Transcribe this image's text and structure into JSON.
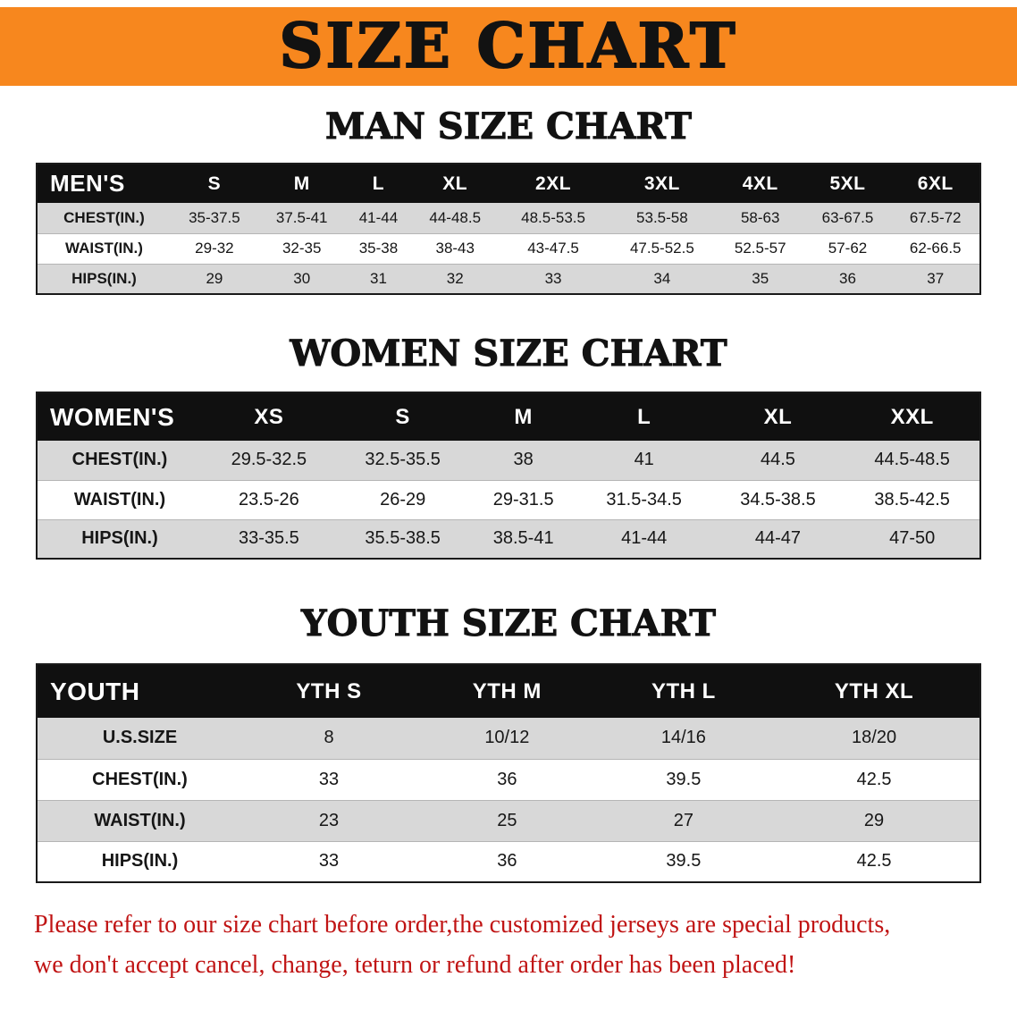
{
  "banner": {
    "title": "SIZE CHART",
    "bg_color": "#F7871E",
    "text_color": "#121212"
  },
  "sections": {
    "men": {
      "heading": "MAN SIZE CHART",
      "table": {
        "header": [
          "MEN'S",
          "S",
          "M",
          "L",
          "XL",
          "2XL",
          "3XL",
          "4XL",
          "5XL",
          "6XL"
        ],
        "rows": [
          [
            "CHEST(IN.)",
            "35-37.5",
            "37.5-41",
            "41-44",
            "44-48.5",
            "48.5-53.5",
            "53.5-58",
            "58-63",
            "63-67.5",
            "67.5-72"
          ],
          [
            "WAIST(IN.)",
            "29-32",
            "32-35",
            "35-38",
            "38-43",
            "43-47.5",
            "47.5-52.5",
            "52.5-57",
            "57-62",
            "62-66.5"
          ],
          [
            "HIPS(IN.)",
            "29",
            "30",
            "31",
            "32",
            "33",
            "34",
            "35",
            "36",
            "37"
          ]
        ]
      }
    },
    "women": {
      "heading": "WOMEN SIZE CHART",
      "table": {
        "header": [
          "WOMEN'S",
          "XS",
          "S",
          "M",
          "L",
          "XL",
          "XXL"
        ],
        "rows": [
          [
            "CHEST(IN.)",
            "29.5-32.5",
            "32.5-35.5",
            "38",
            "41",
            "44.5",
            "44.5-48.5"
          ],
          [
            "WAIST(IN.)",
            "23.5-26",
            "26-29",
            "29-31.5",
            "31.5-34.5",
            "34.5-38.5",
            "38.5-42.5"
          ],
          [
            "HIPS(IN.)",
            "33-35.5",
            "35.5-38.5",
            "38.5-41",
            "41-44",
            "44-47",
            "47-50"
          ]
        ]
      }
    },
    "youth": {
      "heading": "YOUTH SIZE CHART",
      "table": {
        "header": [
          "YOUTH",
          "YTH S",
          "YTH M",
          "YTH L",
          "YTH XL"
        ],
        "rows": [
          [
            "U.S.SIZE",
            "8",
            "10/12",
            "14/16",
            "18/20"
          ],
          [
            "CHEST(IN.)",
            "33",
            "36",
            "39.5",
            "42.5"
          ],
          [
            "WAIST(IN.)",
            "23",
            "25",
            "27",
            "29"
          ],
          [
            "HIPS(IN.)",
            "33",
            "36",
            "39.5",
            "42.5"
          ]
        ]
      }
    }
  },
  "footer": {
    "lines": [
      "Please refer to our size chart before order,the customized jerseys are special products,",
      "we don't accept cancel, change, teturn or refund after order has been placed!"
    ],
    "text_color": "#C01414"
  },
  "colors": {
    "header_row_bg": "#101010",
    "header_row_text": "#FFFFFF",
    "row_alt_bg": "#D8D8D8",
    "row_bg": "#FFFFFF"
  }
}
